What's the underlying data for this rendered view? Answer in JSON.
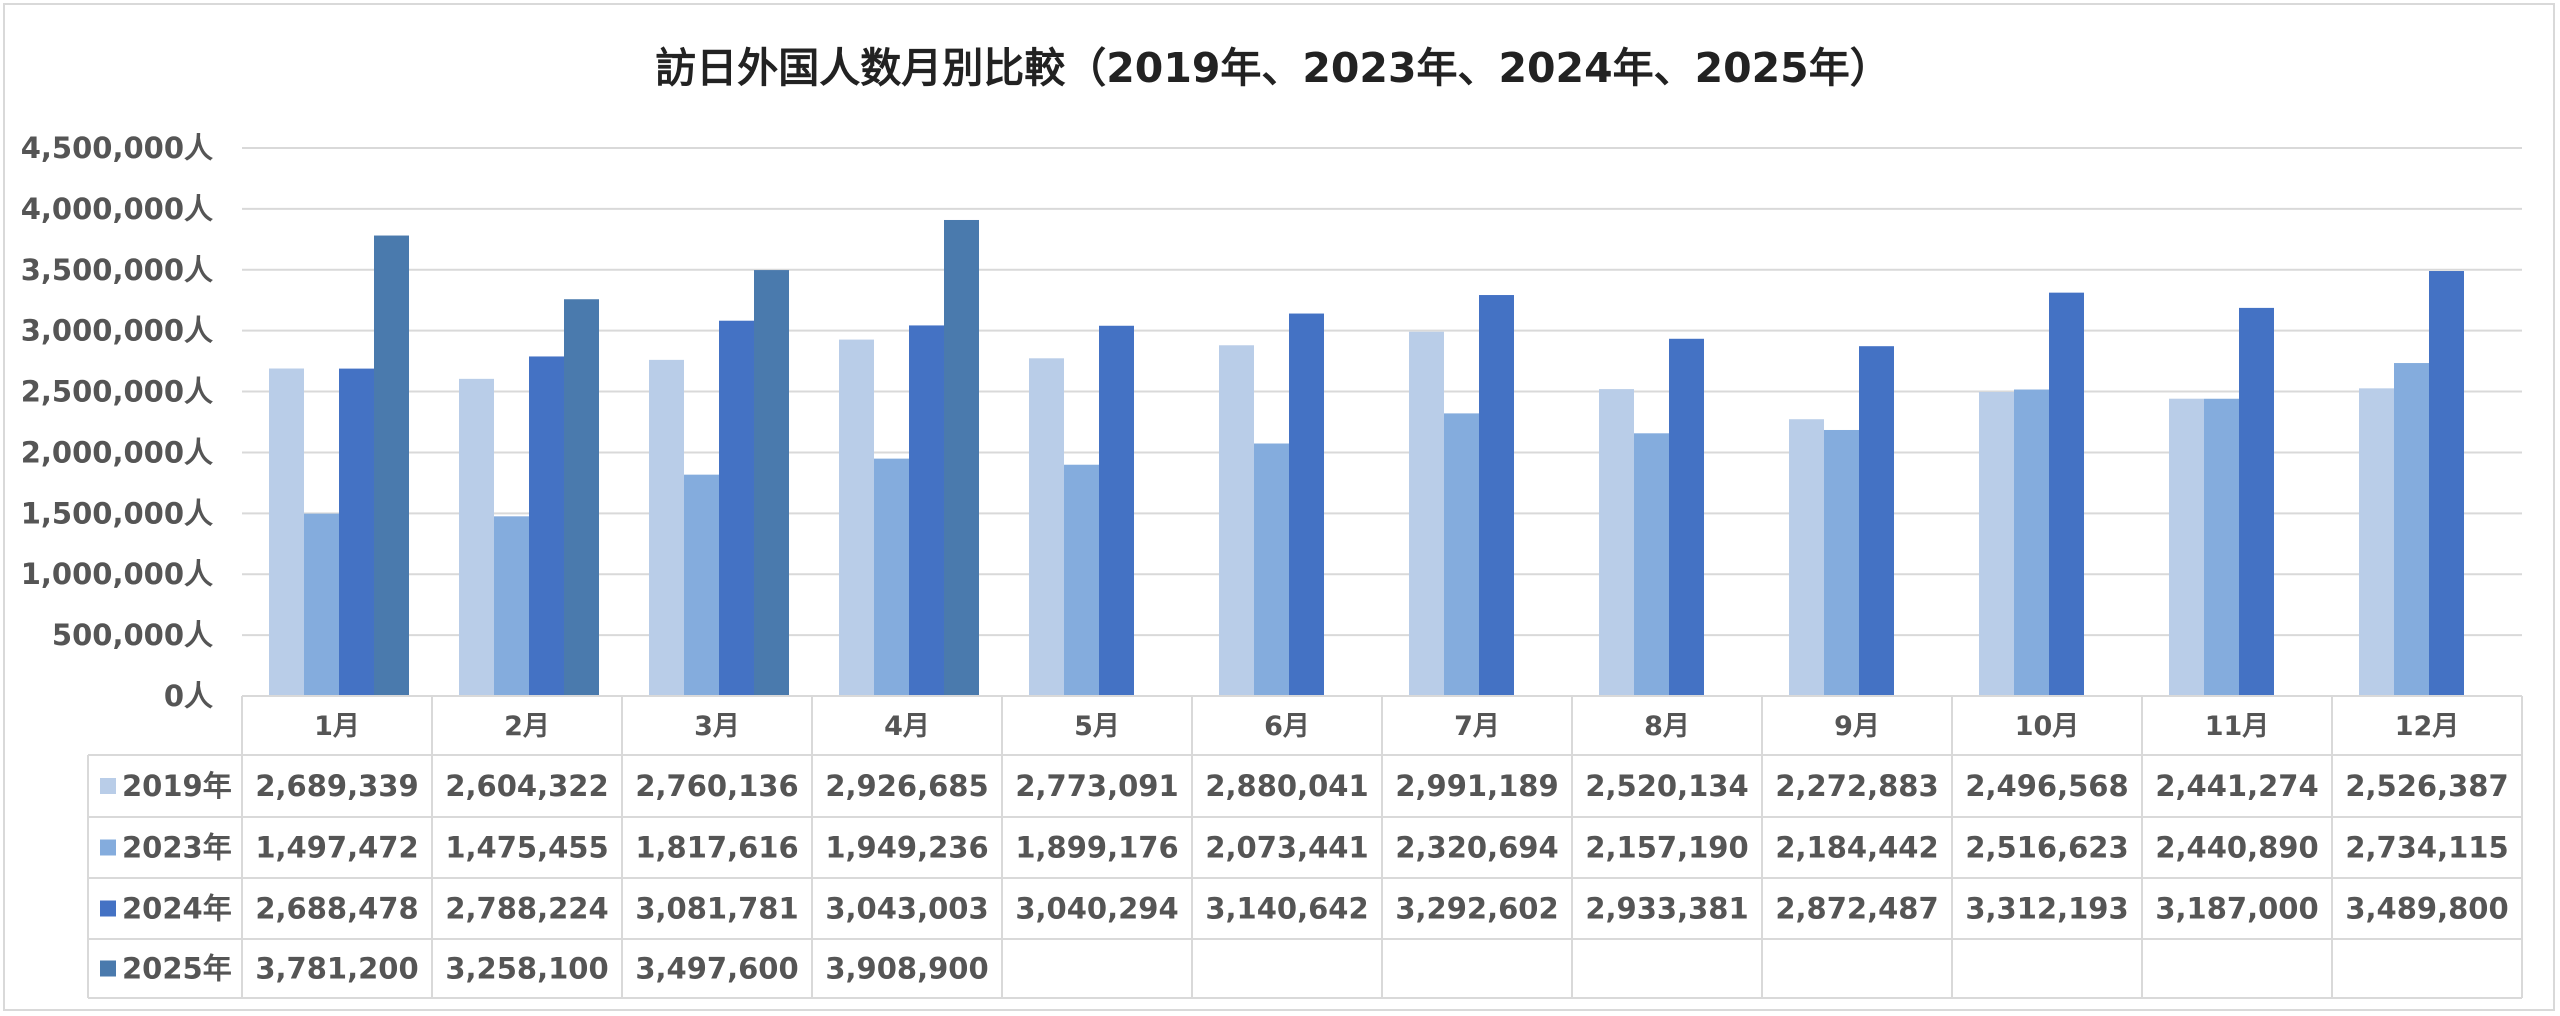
{
  "chart_data": {
    "type": "bar",
    "title": "訪日外国人数月別比較（2019年、2023年、2024年、2025年）",
    "xlabel": "",
    "ylabel": "",
    "ylim": [
      0,
      4500000
    ],
    "grid": true,
    "legend_position": "table-left",
    "y_ticks": [
      "0人",
      "500,000人",
      "1,000,000人",
      "1,500,000人",
      "2,000,000人",
      "2,500,000人",
      "3,000,000人",
      "3,500,000人",
      "4,000,000人",
      "4,500,000人"
    ],
    "categories": [
      "1月",
      "2月",
      "3月",
      "4月",
      "5月",
      "6月",
      "7月",
      "8月",
      "9月",
      "10月",
      "11月",
      "12月"
    ],
    "series": [
      {
        "name": "2019年",
        "color": "#b9cde8",
        "values": [
          2689339,
          2604322,
          2760136,
          2926685,
          2773091,
          2880041,
          2991189,
          2520134,
          2272883,
          2496568,
          2441274,
          2526387
        ],
        "labels": [
          "2,689,339",
          "2,604,322",
          "2,760,136",
          "2,926,685",
          "2,773,091",
          "2,880,041",
          "2,991,189",
          "2,520,134",
          "2,272,883",
          "2,496,568",
          "2,441,274",
          "2,526,387"
        ]
      },
      {
        "name": "2023年",
        "color": "#84acdd",
        "values": [
          1497472,
          1475455,
          1817616,
          1949236,
          1899176,
          2073441,
          2320694,
          2157190,
          2184442,
          2516623,
          2440890,
          2734115
        ],
        "labels": [
          "1,497,472",
          "1,475,455",
          "1,817,616",
          "1,949,236",
          "1,899,176",
          "2,073,441",
          "2,320,694",
          "2,157,190",
          "2,184,442",
          "2,516,623",
          "2,440,890",
          "2,734,115"
        ]
      },
      {
        "name": "2024年",
        "color": "#4472c4",
        "values": [
          2688478,
          2788224,
          3081781,
          3043003,
          3040294,
          3140642,
          3292602,
          2933381,
          2872487,
          3312193,
          3187000,
          3489800
        ],
        "labels": [
          "2,688,478",
          "2,788,224",
          "3,081,781",
          "3,043,003",
          "3,040,294",
          "3,140,642",
          "3,292,602",
          "2,933,381",
          "2,872,487",
          "3,312,193",
          "3,187,000",
          "3,489,800"
        ]
      },
      {
        "name": "2025年",
        "color": "#4a7aad",
        "values": [
          3781200,
          3258100,
          3497600,
          3908900,
          null,
          null,
          null,
          null,
          null,
          null,
          null,
          null
        ],
        "labels": [
          "3,781,200",
          "3,258,100",
          "3,497,600",
          "3,908,900",
          "",
          "",
          "",
          "",
          "",
          "",
          "",
          ""
        ]
      }
    ]
  }
}
